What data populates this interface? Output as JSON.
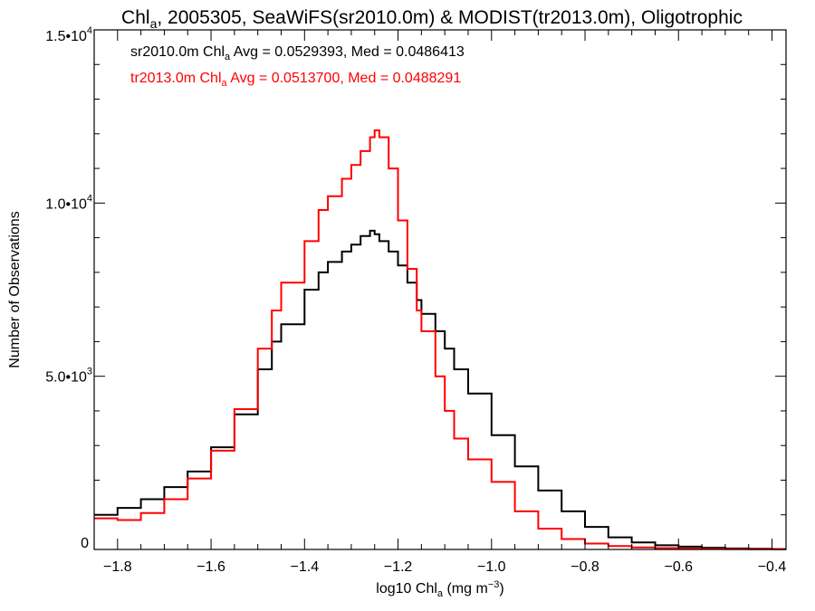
{
  "chart_data": {
    "type": "line",
    "title": {
      "prefix": "Chl",
      "subscript": "a",
      "rest": ", 2005305, SeaWiFS(sr2010.0m) & MODIST(tr2013.0m), Oligotrophic"
    },
    "xlabel": {
      "prefix": "log10 Chl",
      "subscript": "a",
      "middle": " (mg m",
      "superscript": "−3",
      "suffix": ")"
    },
    "ylabel": "Number of Observations",
    "xlim": [
      -1.85,
      -0.37
    ],
    "ylim": [
      0,
      15000
    ],
    "xticks": [
      {
        "value": -1.8,
        "label": "−1.8"
      },
      {
        "value": -1.6,
        "label": "−1.6"
      },
      {
        "value": -1.4,
        "label": "−1.4"
      },
      {
        "value": -1.2,
        "label": "−1.2"
      },
      {
        "value": -1.0,
        "label": "−1.0"
      },
      {
        "value": -0.8,
        "label": "−0.8"
      },
      {
        "value": -0.6,
        "label": "−0.6"
      },
      {
        "value": -0.4,
        "label": "−0.4"
      }
    ],
    "yticks": [
      {
        "value": 0,
        "mantissa": "0",
        "exponent": ""
      },
      {
        "value": 5000,
        "mantissa": "5.0•10",
        "exponent": "3"
      },
      {
        "value": 10000,
        "mantissa": "1.0•10",
        "exponent": "4"
      },
      {
        "value": 15000,
        "mantissa": "1.5•10",
        "exponent": "4"
      }
    ],
    "annotations": [
      {
        "series": "sr2010.0m",
        "color": "#000000",
        "prefix": "sr2010.0m Chl",
        "subscript": "a",
        "suffix": " Avg = 0.0529393, Med = 0.0486413"
      },
      {
        "series": "tr2013.0m",
        "color": "#ff0000",
        "prefix": "tr2013.0m Chl",
        "subscript": "a",
        "suffix": " Avg = 0.0513700, Med = 0.0488291"
      }
    ],
    "series": [
      {
        "name": "sr2010.0m",
        "color": "#000000",
        "x": [
          -1.85,
          -1.8,
          -1.75,
          -1.7,
          -1.65,
          -1.6,
          -1.55,
          -1.5,
          -1.47,
          -1.45,
          -1.4,
          -1.37,
          -1.35,
          -1.32,
          -1.3,
          -1.28,
          -1.26,
          -1.25,
          -1.24,
          -1.22,
          -1.2,
          -1.18,
          -1.16,
          -1.15,
          -1.12,
          -1.1,
          -1.08,
          -1.05,
          -1.0,
          -0.95,
          -0.9,
          -0.85,
          -0.8,
          -0.75,
          -0.7,
          -0.65,
          -0.6,
          -0.55,
          -0.5,
          -0.45,
          -0.4,
          -0.37
        ],
        "y": [
          1000,
          1200,
          1450,
          1800,
          2250,
          2950,
          3900,
          5200,
          6000,
          6500,
          7500,
          8000,
          8300,
          8600,
          8800,
          9050,
          9200,
          9100,
          8900,
          8600,
          8200,
          7700,
          7200,
          6800,
          6300,
          5800,
          5200,
          4500,
          3300,
          2400,
          1700,
          1100,
          650,
          350,
          200,
          120,
          80,
          50,
          30,
          20,
          10,
          10
        ]
      },
      {
        "name": "tr2013.0m",
        "color": "#ff0000",
        "x": [
          -1.85,
          -1.8,
          -1.75,
          -1.7,
          -1.65,
          -1.6,
          -1.55,
          -1.5,
          -1.47,
          -1.45,
          -1.4,
          -1.37,
          -1.35,
          -1.32,
          -1.3,
          -1.28,
          -1.26,
          -1.25,
          -1.24,
          -1.22,
          -1.2,
          -1.18,
          -1.16,
          -1.15,
          -1.12,
          -1.1,
          -1.08,
          -1.05,
          -1.0,
          -0.95,
          -0.9,
          -0.85,
          -0.8,
          -0.75,
          -0.7,
          -0.65,
          -0.6,
          -0.55,
          -0.5,
          -0.45,
          -0.4,
          -0.37
        ],
        "y": [
          900,
          850,
          1050,
          1450,
          2050,
          2850,
          4050,
          5800,
          6900,
          7700,
          8900,
          9800,
          10200,
          10700,
          11100,
          11500,
          11900,
          12100,
          11900,
          11000,
          9500,
          8100,
          6900,
          6300,
          5000,
          4000,
          3200,
          2600,
          1950,
          1100,
          600,
          300,
          170,
          100,
          60,
          40,
          25,
          15,
          10,
          5,
          5,
          5
        ]
      }
    ],
    "grid": false,
    "legend": "none"
  }
}
